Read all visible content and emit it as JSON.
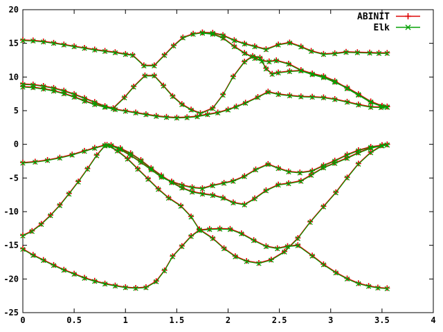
{
  "chart_data": {
    "type": "line",
    "title": "",
    "xlabel": "",
    "ylabel": "",
    "x_axis": {
      "range": [
        0,
        4
      ],
      "ticks": [
        0,
        0.5,
        1,
        1.5,
        2,
        2.5,
        3,
        3.5,
        4
      ],
      "tick_labels": [
        "0",
        "0.5",
        "1",
        "1.5",
        "2",
        "2.5",
        "3",
        "3.5",
        "4"
      ]
    },
    "y_axis": {
      "range": [
        -25,
        20
      ],
      "ticks": [
        20,
        15,
        10,
        5,
        0,
        -5,
        -10,
        -15,
        -20,
        -25
      ],
      "tick_labels": [
        "20",
        "15",
        "10",
        "5",
        "0",
        "-5",
        "-10",
        "-15",
        "-20",
        "-25"
      ]
    },
    "legend": [
      {
        "label": "ABINIT",
        "color": "#dd0000",
        "marker": "plus-marker"
      },
      {
        "label": "Elk",
        "color": "#00a000",
        "marker": "cross-marker"
      }
    ],
    "legend_position": "top-right-inside",
    "grid": false,
    "series_note": "Two series (ABINIT, Elk) plot the same eight band curves; values nearly coincide",
    "bands": [
      [
        [
          0,
          15.5
        ],
        [
          0.1,
          15.45
        ],
        [
          0.2,
          15.3
        ],
        [
          0.3,
          15.1
        ],
        [
          0.4,
          14.85
        ],
        [
          0.5,
          14.6
        ],
        [
          0.6,
          14.35
        ],
        [
          0.7,
          14.1
        ],
        [
          0.8,
          13.9
        ],
        [
          0.9,
          13.7
        ],
        [
          1.0,
          13.45
        ],
        [
          1.07,
          13.3
        ],
        [
          1.18,
          11.75
        ],
        [
          1.28,
          11.75
        ],
        [
          1.38,
          13.3
        ],
        [
          1.47,
          14.7
        ],
        [
          1.56,
          15.9
        ],
        [
          1.66,
          16.45
        ],
        [
          1.75,
          16.65
        ],
        [
          1.85,
          16.6
        ],
        [
          1.95,
          16.25
        ],
        [
          2.06,
          15.5
        ],
        [
          2.16,
          15.0
        ],
        [
          2.26,
          14.6
        ],
        [
          2.37,
          14.15
        ],
        [
          2.49,
          14.85
        ],
        [
          2.6,
          15.15
        ],
        [
          2.71,
          14.55
        ],
        [
          2.81,
          13.9
        ],
        [
          2.93,
          13.45
        ],
        [
          3.04,
          13.55
        ],
        [
          3.15,
          13.75
        ],
        [
          3.26,
          13.7
        ],
        [
          3.38,
          13.65
        ],
        [
          3.47,
          13.6
        ],
        [
          3.55,
          13.6
        ]
      ],
      [
        [
          1.75,
          16.6
        ],
        [
          1.85,
          16.45
        ],
        [
          1.95,
          15.85
        ],
        [
          2.06,
          14.6
        ],
        [
          2.16,
          13.6
        ],
        [
          2.26,
          12.85
        ],
        [
          2.33,
          12.45
        ],
        [
          2.4,
          12.35
        ],
        [
          2.47,
          12.5
        ],
        [
          2.59,
          12.0
        ],
        [
          2.71,
          11.05
        ],
        [
          2.82,
          10.55
        ],
        [
          2.93,
          10.15
        ],
        [
          3.04,
          9.45
        ],
        [
          3.16,
          8.35
        ],
        [
          3.27,
          7.4
        ],
        [
          3.39,
          6.3
        ],
        [
          3.5,
          5.7
        ],
        [
          3.55,
          5.6
        ]
      ],
      [
        [
          0,
          9.0
        ],
        [
          0.1,
          8.9
        ],
        [
          0.2,
          8.7
        ],
        [
          0.3,
          8.4
        ],
        [
          0.4,
          8.0
        ],
        [
          0.5,
          7.5
        ],
        [
          0.6,
          6.9
        ],
        [
          0.7,
          6.3
        ],
        [
          0.8,
          5.7
        ],
        [
          0.88,
          5.4
        ],
        [
          0.99,
          7.0
        ],
        [
          1.08,
          8.6
        ],
        [
          1.19,
          10.25
        ],
        [
          1.28,
          10.25
        ],
        [
          1.37,
          8.75
        ],
        [
          1.46,
          7.2
        ],
        [
          1.55,
          6.0
        ],
        [
          1.64,
          5.2
        ],
        [
          1.73,
          4.65
        ],
        [
          1.85,
          5.4
        ],
        [
          1.95,
          7.4
        ],
        [
          2.05,
          10.1
        ],
        [
          2.16,
          12.3
        ],
        [
          2.24,
          13.15
        ],
        [
          2.31,
          12.9
        ],
        [
          2.37,
          11.3
        ],
        [
          2.43,
          10.5
        ],
        [
          2.49,
          10.7
        ],
        [
          2.6,
          10.9
        ],
        [
          2.71,
          11.0
        ],
        [
          2.82,
          10.45
        ],
        [
          2.93,
          10.0
        ],
        [
          3.04,
          9.3
        ],
        [
          3.16,
          8.45
        ],
        [
          3.27,
          7.5
        ],
        [
          3.39,
          6.4
        ],
        [
          3.5,
          5.75
        ],
        [
          3.55,
          5.65
        ]
      ],
      [
        [
          0,
          8.6
        ],
        [
          0.1,
          8.5
        ],
        [
          0.2,
          8.3
        ],
        [
          0.3,
          8.0
        ],
        [
          0.4,
          7.6
        ],
        [
          0.5,
          7.1
        ],
        [
          0.6,
          6.5
        ],
        [
          0.7,
          6.0
        ],
        [
          0.8,
          5.6
        ],
        [
          0.9,
          5.25
        ],
        [
          1.0,
          5.0
        ],
        [
          1.1,
          4.75
        ],
        [
          1.2,
          4.5
        ],
        [
          1.3,
          4.25
        ],
        [
          1.4,
          4.1
        ],
        [
          1.5,
          4.0
        ],
        [
          1.6,
          4.05
        ],
        [
          1.7,
          4.2
        ],
        [
          1.8,
          4.5
        ],
        [
          1.9,
          4.75
        ],
        [
          2.0,
          5.2
        ],
        [
          2.08,
          5.65
        ],
        [
          2.17,
          6.2
        ],
        [
          2.29,
          7.05
        ],
        [
          2.39,
          7.85
        ],
        [
          2.49,
          7.5
        ],
        [
          2.6,
          7.3
        ],
        [
          2.71,
          7.15
        ],
        [
          2.82,
          7.1
        ],
        [
          2.93,
          7.0
        ],
        [
          3.04,
          6.75
        ],
        [
          3.16,
          6.35
        ],
        [
          3.27,
          5.95
        ],
        [
          3.39,
          5.6
        ],
        [
          3.49,
          5.55
        ],
        [
          3.55,
          5.6
        ]
      ],
      [
        [
          0,
          -2.7
        ],
        [
          0.12,
          -2.55
        ],
        [
          0.24,
          -2.3
        ],
        [
          0.36,
          -1.95
        ],
        [
          0.48,
          -1.5
        ],
        [
          0.6,
          -0.95
        ],
        [
          0.7,
          -0.5
        ],
        [
          0.8,
          -0.08
        ],
        [
          0.86,
          -0.12
        ],
        [
          0.95,
          -0.7
        ],
        [
          1.05,
          -1.6
        ],
        [
          1.15,
          -2.6
        ],
        [
          1.25,
          -3.7
        ],
        [
          1.35,
          -4.8
        ],
        [
          1.45,
          -5.5
        ],
        [
          1.55,
          -6.0
        ],
        [
          1.65,
          -6.35
        ],
        [
          1.75,
          -6.5
        ],
        [
          1.85,
          -6.05
        ],
        [
          1.96,
          -5.7
        ],
        [
          2.05,
          -5.4
        ],
        [
          2.16,
          -4.7
        ],
        [
          2.27,
          -3.7
        ],
        [
          2.39,
          -2.9
        ],
        [
          2.49,
          -3.5
        ],
        [
          2.59,
          -4.0
        ],
        [
          2.7,
          -4.15
        ],
        [
          2.82,
          -3.9
        ],
        [
          2.93,
          -3.1
        ],
        [
          3.04,
          -2.4
        ],
        [
          3.16,
          -1.5
        ],
        [
          3.27,
          -0.85
        ],
        [
          3.39,
          -0.35
        ],
        [
          3.5,
          -0.1
        ],
        [
          3.55,
          0.0
        ]
      ],
      [
        [
          0,
          -13.5
        ],
        [
          0.09,
          -12.85
        ],
        [
          0.18,
          -11.8
        ],
        [
          0.27,
          -10.5
        ],
        [
          0.36,
          -9.0
        ],
        [
          0.45,
          -7.3
        ],
        [
          0.54,
          -5.5
        ],
        [
          0.63,
          -3.6
        ],
        [
          0.72,
          -1.6
        ],
        [
          0.8,
          -0.15
        ],
        [
          0.86,
          -0.1
        ],
        [
          0.95,
          -0.55
        ],
        [
          1.05,
          -1.3
        ],
        [
          1.15,
          -2.3
        ],
        [
          1.25,
          -3.5
        ],
        [
          1.35,
          -4.6
        ],
        [
          1.45,
          -5.6
        ],
        [
          1.55,
          -6.4
        ],
        [
          1.65,
          -7.0
        ],
        [
          1.75,
          -7.3
        ],
        [
          1.85,
          -7.5
        ],
        [
          1.95,
          -7.9
        ],
        [
          2.05,
          -8.6
        ],
        [
          2.16,
          -8.9
        ],
        [
          2.26,
          -8.0
        ],
        [
          2.37,
          -6.8
        ],
        [
          2.49,
          -5.95
        ],
        [
          2.59,
          -5.75
        ],
        [
          2.71,
          -5.4
        ],
        [
          2.81,
          -4.5
        ],
        [
          2.93,
          -3.4
        ],
        [
          3.04,
          -2.75
        ],
        [
          3.16,
          -2.0
        ],
        [
          3.27,
          -1.2
        ],
        [
          3.39,
          -0.5
        ],
        [
          3.5,
          -0.12
        ],
        [
          3.55,
          0.0
        ]
      ],
      [
        [
          0,
          -15.5
        ],
        [
          0.1,
          -16.4
        ],
        [
          0.2,
          -17.15
        ],
        [
          0.3,
          -17.9
        ],
        [
          0.4,
          -18.6
        ],
        [
          0.5,
          -19.2
        ],
        [
          0.6,
          -19.8
        ],
        [
          0.7,
          -20.25
        ],
        [
          0.8,
          -20.65
        ],
        [
          0.9,
          -20.95
        ],
        [
          1.0,
          -21.2
        ],
        [
          1.1,
          -21.3
        ],
        [
          1.2,
          -21.2
        ],
        [
          1.3,
          -20.3
        ],
        [
          1.38,
          -18.7
        ],
        [
          1.46,
          -16.6
        ],
        [
          1.55,
          -15.1
        ],
        [
          1.64,
          -13.6
        ],
        [
          1.72,
          -12.7
        ],
        [
          1.82,
          -12.55
        ],
        [
          1.92,
          -12.5
        ],
        [
          2.02,
          -12.55
        ],
        [
          2.13,
          -13.2
        ],
        [
          2.25,
          -14.2
        ],
        [
          2.37,
          -15.1
        ],
        [
          2.48,
          -15.4
        ],
        [
          2.58,
          -15.1
        ],
        [
          2.68,
          -14.95
        ],
        [
          2.82,
          -16.5
        ],
        [
          2.93,
          -17.8
        ],
        [
          3.05,
          -19.0
        ],
        [
          3.16,
          -19.9
        ],
        [
          3.27,
          -20.6
        ],
        [
          3.37,
          -21.0
        ],
        [
          3.46,
          -21.25
        ],
        [
          3.55,
          -21.35
        ]
      ],
      [
        [
          0.82,
          -0.05
        ],
        [
          0.92,
          -0.9
        ],
        [
          1.02,
          -2.1
        ],
        [
          1.12,
          -3.6
        ],
        [
          1.22,
          -5.1
        ],
        [
          1.32,
          -6.6
        ],
        [
          1.42,
          -7.9
        ],
        [
          1.54,
          -9.1
        ],
        [
          1.64,
          -10.7
        ],
        [
          1.72,
          -12.6
        ],
        [
          1.85,
          -13.9
        ],
        [
          1.96,
          -15.4
        ],
        [
          2.07,
          -16.6
        ],
        [
          2.18,
          -17.3
        ],
        [
          2.3,
          -17.6
        ],
        [
          2.42,
          -17.1
        ],
        [
          2.55,
          -15.9
        ],
        [
          2.68,
          -13.9
        ],
        [
          2.8,
          -11.5
        ],
        [
          2.93,
          -9.2
        ],
        [
          3.05,
          -7.1
        ],
        [
          3.16,
          -4.9
        ],
        [
          3.27,
          -2.85
        ],
        [
          3.39,
          -1.15
        ],
        [
          3.5,
          -0.15
        ],
        [
          3.55,
          0.0
        ]
      ]
    ]
  }
}
